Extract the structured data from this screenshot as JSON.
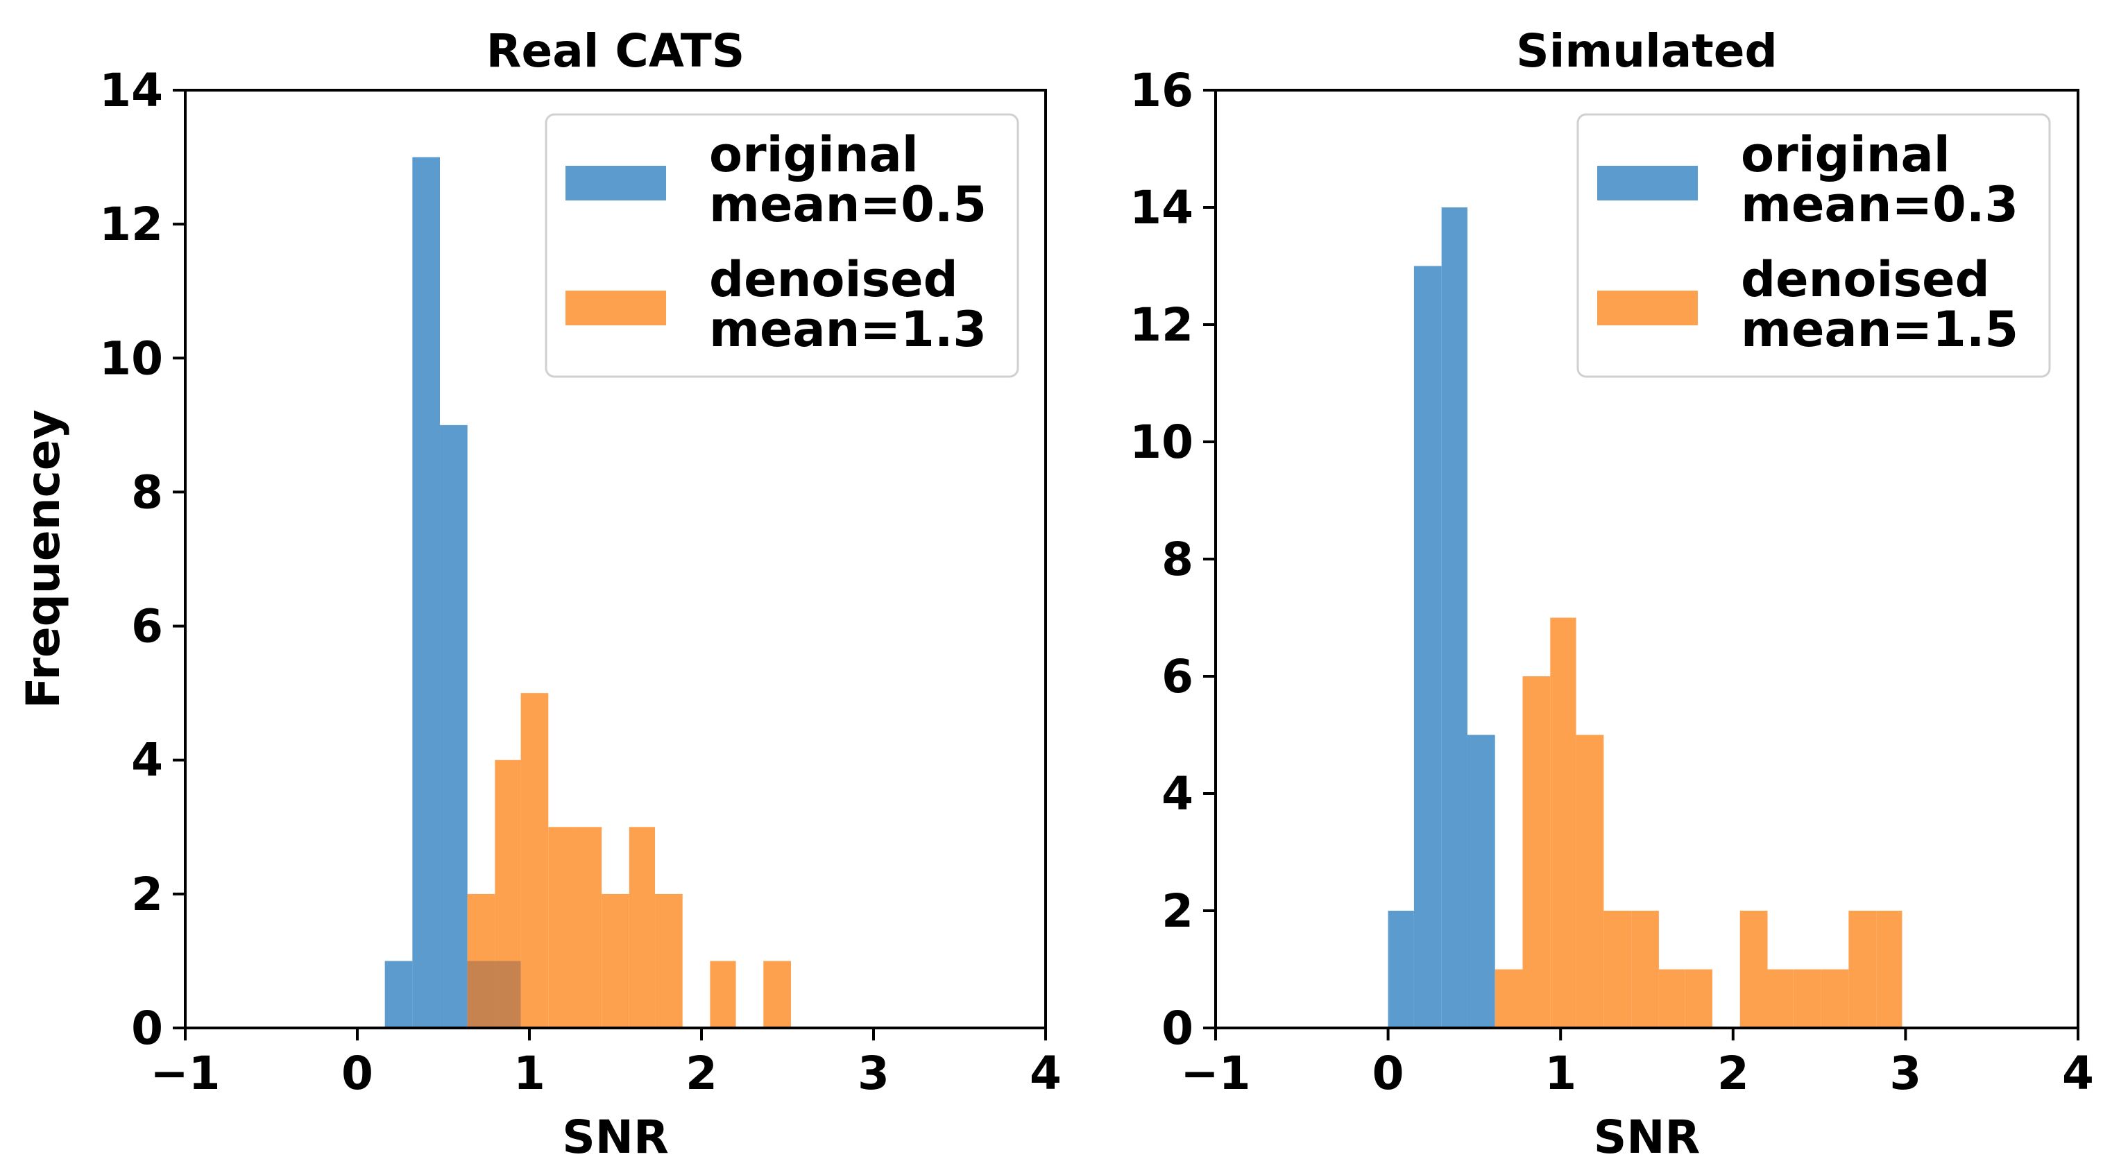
{
  "colors": {
    "original": "#5b9bcd",
    "denoised": "#fea14f",
    "overlap": "#c7834f"
  },
  "chart_data": [
    {
      "type": "histogram",
      "title": "Real CATS",
      "xlabel": "SNR",
      "ylabel": "Frequencey",
      "xlim": [
        -1,
        4
      ],
      "ylim": [
        0,
        14
      ],
      "xticks": [
        -1,
        0,
        1,
        2,
        3,
        4
      ],
      "xtick_labels": [
        "−1",
        "0",
        "1",
        "2",
        "3",
        "4"
      ],
      "yticks": [
        0,
        2,
        4,
        6,
        8,
        10,
        12,
        14
      ],
      "ytick_labels": [
        "0",
        "2",
        "4",
        "6",
        "8",
        "10",
        "12",
        "14"
      ],
      "legend_position": "top-right",
      "series": [
        {
          "name": "original",
          "legend": [
            "original",
            "mean=0.5"
          ],
          "color_key": "original",
          "bins": [
            {
              "x0": 0.16,
              "x1": 0.32,
              "count": 1
            },
            {
              "x0": 0.32,
              "x1": 0.48,
              "count": 13
            },
            {
              "x0": 0.48,
              "x1": 0.64,
              "count": 9
            },
            {
              "x0": 0.64,
              "x1": 0.95,
              "count": 1
            }
          ]
        },
        {
          "name": "denoised",
          "legend": [
            "denoised",
            "mean=1.3"
          ],
          "color_key": "denoised",
          "bins": [
            {
              "x0": 0.64,
              "x1": 0.8,
              "count": 2
            },
            {
              "x0": 0.8,
              "x1": 0.95,
              "count": 4
            },
            {
              "x0": 0.95,
              "x1": 1.11,
              "count": 5
            },
            {
              "x0": 1.11,
              "x1": 1.26,
              "count": 3
            },
            {
              "x0": 1.26,
              "x1": 1.42,
              "count": 3
            },
            {
              "x0": 1.42,
              "x1": 1.58,
              "count": 2
            },
            {
              "x0": 1.58,
              "x1": 1.73,
              "count": 3
            },
            {
              "x0": 1.73,
              "x1": 1.89,
              "count": 2
            },
            {
              "x0": 1.89,
              "x1": 2.05,
              "count": 0
            },
            {
              "x0": 2.05,
              "x1": 2.2,
              "count": 1
            },
            {
              "x0": 2.2,
              "x1": 2.36,
              "count": 0
            },
            {
              "x0": 2.36,
              "x1": 2.52,
              "count": 1
            }
          ]
        }
      ]
    },
    {
      "type": "histogram",
      "title": "Simulated",
      "xlabel": "SNR",
      "ylabel": "",
      "xlim": [
        -1,
        4
      ],
      "ylim": [
        0,
        16
      ],
      "xticks": [
        -1,
        0,
        1,
        2,
        3,
        4
      ],
      "xtick_labels": [
        "−1",
        "0",
        "1",
        "2",
        "3",
        "4"
      ],
      "yticks": [
        0,
        2,
        4,
        6,
        8,
        10,
        12,
        14,
        16
      ],
      "ytick_labels": [
        "0",
        "2",
        "4",
        "6",
        "8",
        "10",
        "12",
        "14",
        "16"
      ],
      "legend_position": "top-right",
      "series": [
        {
          "name": "original",
          "legend": [
            "original",
            "mean=0.3"
          ],
          "color_key": "original",
          "bins": [
            {
              "x0": 0.0,
              "x1": 0.15,
              "count": 2
            },
            {
              "x0": 0.15,
              "x1": 0.31,
              "count": 13
            },
            {
              "x0": 0.31,
              "x1": 0.46,
              "count": 14
            },
            {
              "x0": 0.46,
              "x1": 0.62,
              "count": 5
            }
          ]
        },
        {
          "name": "denoised",
          "legend": [
            "denoised",
            "mean=1.5"
          ],
          "color_key": "denoised",
          "bins": [
            {
              "x0": 0.62,
              "x1": 0.78,
              "count": 1
            },
            {
              "x0": 0.78,
              "x1": 0.94,
              "count": 6
            },
            {
              "x0": 0.94,
              "x1": 1.09,
              "count": 7
            },
            {
              "x0": 1.09,
              "x1": 1.25,
              "count": 5
            },
            {
              "x0": 1.25,
              "x1": 1.41,
              "count": 2
            },
            {
              "x0": 1.41,
              "x1": 1.57,
              "count": 2
            },
            {
              "x0": 1.57,
              "x1": 1.72,
              "count": 1
            },
            {
              "x0": 1.72,
              "x1": 1.88,
              "count": 1
            },
            {
              "x0": 1.88,
              "x1": 2.04,
              "count": 0
            },
            {
              "x0": 2.04,
              "x1": 2.2,
              "count": 2
            },
            {
              "x0": 2.2,
              "x1": 2.35,
              "count": 1
            },
            {
              "x0": 2.35,
              "x1": 2.51,
              "count": 1
            },
            {
              "x0": 2.51,
              "x1": 2.67,
              "count": 1
            },
            {
              "x0": 2.67,
              "x1": 2.83,
              "count": 2
            },
            {
              "x0": 2.83,
              "x1": 2.98,
              "count": 2
            }
          ]
        }
      ]
    }
  ]
}
